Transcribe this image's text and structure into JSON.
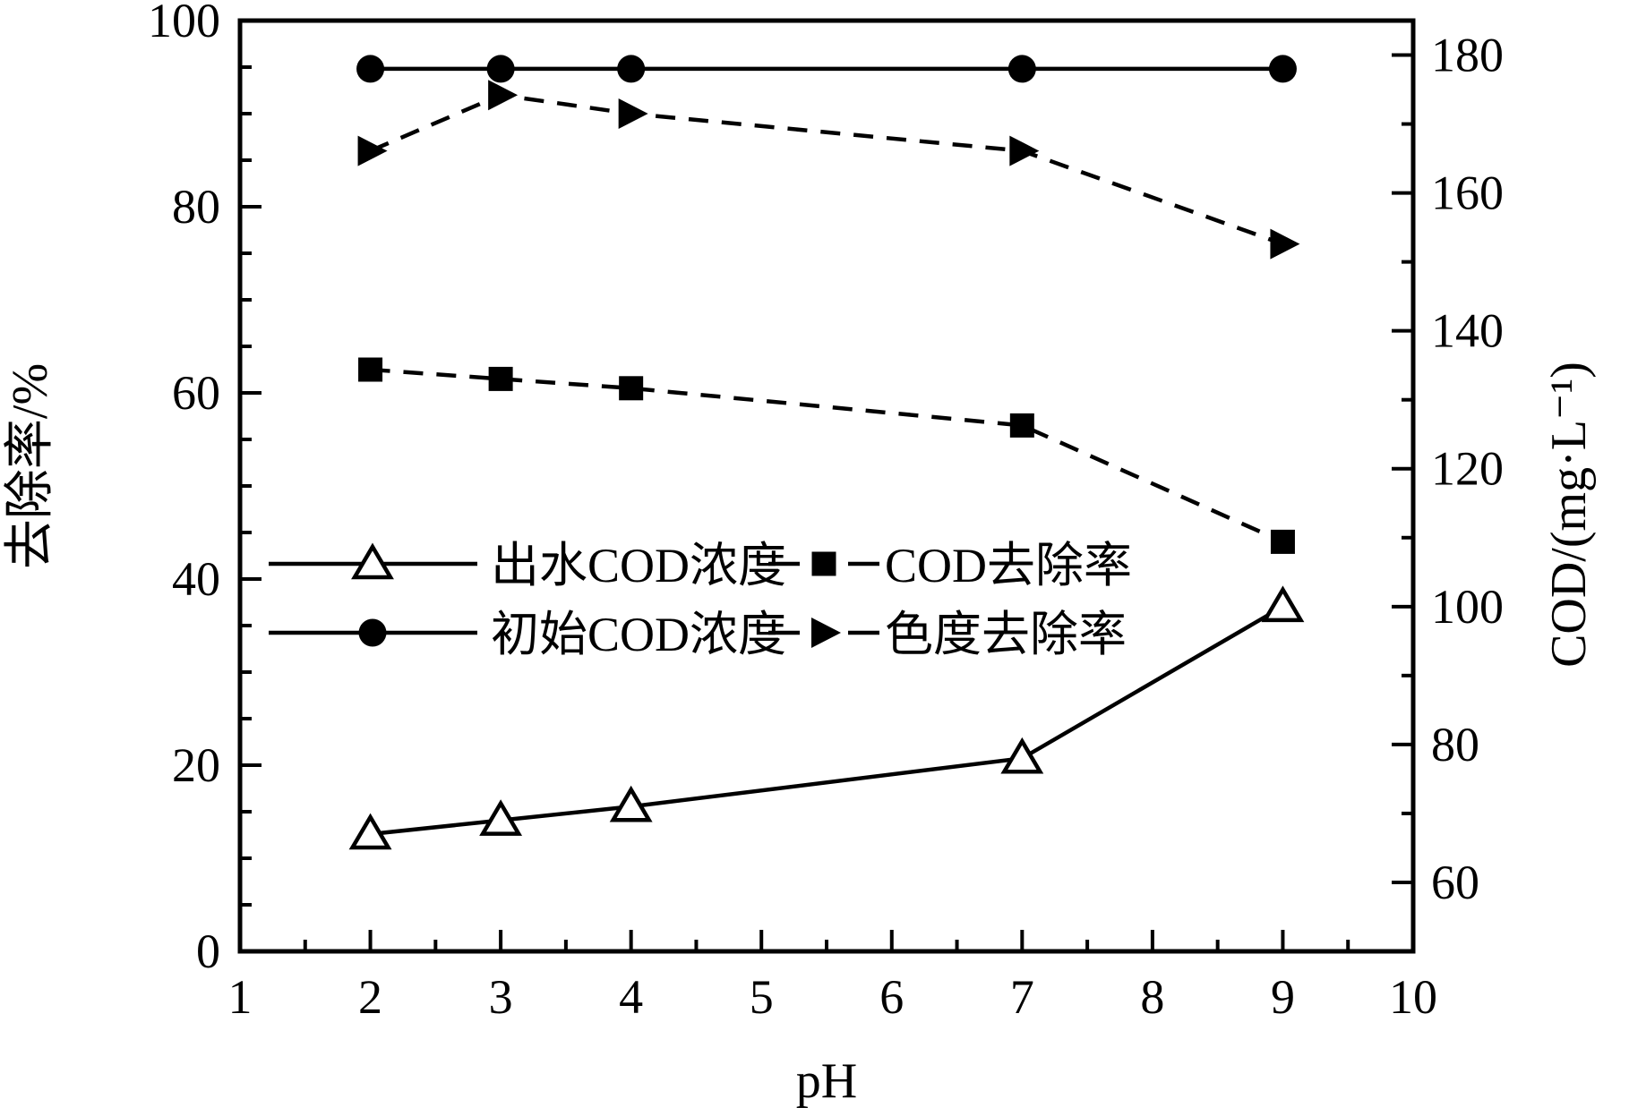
{
  "figure": {
    "background": "#ffffff",
    "ink": "#000000"
  },
  "chart_data": {
    "type": "line",
    "title": "",
    "xlabel": "pH",
    "ylabel_left": "去除率/%",
    "ylabel_right": "COD/(mg·L⁻¹)",
    "x": [
      2,
      3,
      4,
      7,
      9
    ],
    "x_axis": {
      "min": 1,
      "max": 10,
      "major_ticks": [
        1,
        2,
        3,
        4,
        5,
        6,
        7,
        8,
        9,
        10
      ],
      "tick_labels": [
        "1",
        "2",
        "3",
        "4",
        "5",
        "6",
        "7",
        "8",
        "9",
        "10"
      ],
      "minor_ticks": [
        1.5,
        2.5,
        3.5,
        4.5,
        5.5,
        6.5,
        7.5,
        8.5,
        9.5
      ]
    },
    "left_axis": {
      "min": 0,
      "max": 100,
      "major_ticks": [
        0,
        20,
        40,
        60,
        80,
        100
      ],
      "tick_labels": [
        "0",
        "20",
        "40",
        "60",
        "80",
        "100"
      ],
      "minor_ticks": [
        5,
        10,
        15,
        25,
        30,
        35,
        45,
        50,
        55,
        65,
        70,
        75,
        85,
        90,
        95
      ]
    },
    "right_axis": {
      "min": 50,
      "max": 185,
      "major_ticks": [
        60,
        80,
        100,
        120,
        140,
        160,
        180
      ],
      "tick_labels": [
        "60",
        "80",
        "100",
        "120",
        "140",
        "160",
        "180"
      ],
      "minor_ticks": [
        70,
        90,
        110,
        130,
        150,
        170
      ]
    },
    "series": [
      {
        "name": "出水COD浓度",
        "axis": "right",
        "marker": "open-triangle",
        "line": "solid",
        "values": [
          67,
          69,
          71,
          78,
          100
        ]
      },
      {
        "name": "初始COD浓度",
        "axis": "right",
        "marker": "filled-circle",
        "line": "solid",
        "values": [
          178,
          178,
          178,
          178,
          178
        ]
      },
      {
        "name": "COD去除率",
        "axis": "left",
        "marker": "filled-square",
        "line": "dashed",
        "values": [
          62.5,
          61.5,
          60.5,
          56.5,
          44
        ]
      },
      {
        "name": "色度去除率",
        "axis": "left",
        "marker": "filled-right-triangle",
        "line": "dashed",
        "values": [
          86,
          92,
          90,
          86,
          76
        ]
      }
    ],
    "legend": {
      "position": "inside-middle-left",
      "rows": [
        [
          "出水COD浓度",
          "COD去除率"
        ],
        [
          "初始COD浓度",
          "色度去除率"
        ]
      ]
    },
    "grid": false
  }
}
